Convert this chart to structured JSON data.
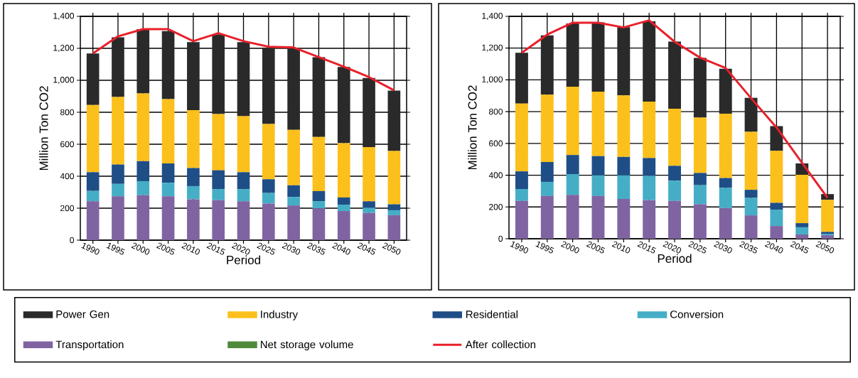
{
  "chart_data": [
    {
      "type": "bar",
      "stacked": true,
      "xlabel": "Period",
      "ylabel": "Million Ton CO2",
      "grid": true,
      "legend": "bottom",
      "categories": [
        "1990",
        "1995",
        "2000",
        "2005",
        "2010",
        "2015",
        "2020",
        "2025",
        "2030",
        "2035",
        "2040",
        "2045",
        "2050"
      ],
      "ylim": [
        0,
        1400
      ],
      "yticks": [
        0,
        200,
        400,
        600,
        800,
        {
          "value": 1000,
          "label": "1,000"
        },
        {
          "value": 1200,
          "label": "1,200"
        },
        {
          "value": 1400,
          "label": "1,400"
        }
      ],
      "series": [
        {
          "name": "Net storage volume",
          "color": "#4e8a3a",
          "values": [
            0,
            0,
            0,
            0,
            0,
            0,
            0,
            0,
            0,
            0,
            0,
            0,
            0
          ]
        },
        {
          "name": "Transportation",
          "color": "#8064a2",
          "values": [
            243,
            274,
            281,
            274,
            256,
            250,
            243,
            229,
            217,
            199,
            182,
            170,
            156
          ]
        },
        {
          "name": "Conversion",
          "color": "#45aec6",
          "values": [
            65,
            78,
            88,
            85,
            82,
            69,
            76,
            66,
            53,
            45,
            40,
            33,
            31
          ]
        },
        {
          "name": "Residential",
          "color": "#1f4e87",
          "values": [
            117,
            121,
            125,
            121,
            113,
            118,
            106,
            86,
            73,
            63,
            45,
            40,
            37
          ]
        },
        {
          "name": "Industry",
          "color": "#fcc01c",
          "values": [
            420,
            423,
            424,
            402,
            362,
            352,
            351,
            346,
            347,
            339,
            340,
            339,
            334
          ]
        },
        {
          "name": "Power Gen",
          "color": "#2a2a2a",
          "values": [
            323,
            373,
            402,
            426,
            426,
            497,
            463,
            477,
            509,
            498,
            476,
            432,
            378
          ]
        },
        {
          "name": "After collection",
          "type": "line",
          "color": "#e8202a",
          "values": [
            1168,
            1275,
            1320,
            1320,
            1245,
            1295,
            1245,
            1210,
            1205,
            1145,
            1085,
            1020,
            937
          ]
        }
      ]
    },
    {
      "type": "bar",
      "stacked": true,
      "xlabel": "Period",
      "ylabel": "Million Ton CO2",
      "grid": true,
      "categories": [
        "1990",
        "1995",
        "2000",
        "2005",
        "2010",
        "2015",
        "2020",
        "2025",
        "2030",
        "2035",
        "2040",
        "2045",
        "2050"
      ],
      "ylim": [
        0,
        1400
      ],
      "yticks": [
        0,
        200,
        400,
        600,
        800,
        {
          "value": 1000,
          "label": "1,000"
        },
        {
          "value": 1200,
          "label": "1,200"
        },
        {
          "value": 1400,
          "label": "1,400"
        }
      ],
      "series": [
        {
          "color": "#4e8a3a",
          "values": [
            0,
            0,
            0,
            0,
            0,
            0,
            0,
            0,
            0,
            0,
            0,
            0,
            0
          ]
        },
        {
          "color": "#8064a2",
          "values": [
            238,
            269,
            276,
            269,
            250,
            243,
            238,
            217,
            193,
            147,
            80,
            27,
            22
          ]
        },
        {
          "color": "#45aec6",
          "values": [
            75,
            89,
            131,
            131,
            150,
            152,
            127,
            120,
            127,
            110,
            103,
            45,
            9
          ]
        },
        {
          "color": "#1f4e87",
          "values": [
            111,
            125,
            120,
            120,
            115,
            113,
            94,
            77,
            62,
            51,
            43,
            26,
            12
          ]
        },
        {
          "color": "#fcc01c",
          "values": [
            427,
            424,
            430,
            406,
            387,
            355,
            359,
            348,
            405,
            365,
            327,
            304,
            202
          ]
        },
        {
          "color": "#2a2a2a",
          "values": [
            320,
            373,
            398,
            436,
            430,
            506,
            423,
            376,
            283,
            214,
            156,
            72,
            36
          ]
        },
        {
          "type": "line",
          "color": "#e8202a",
          "values": [
            1171,
            1285,
            1360,
            1360,
            1330,
            1375,
            1240,
            1140,
            1075,
            885,
            700,
            478,
            258
          ]
        }
      ]
    }
  ]
}
